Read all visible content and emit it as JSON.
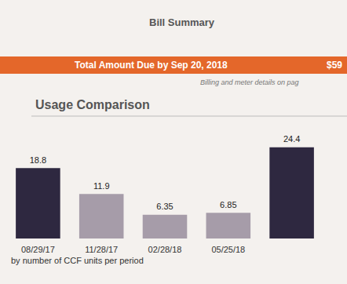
{
  "chart_data": {
    "type": "bar",
    "title": "Usage Comparison",
    "subtitle": "by number of CCF units per period",
    "annotations": [
      "Bill Summary",
      "Total Amount Due by Sep 20, 2018",
      "$59",
      "Billing and meter details on pag"
    ],
    "categories": [
      "08/29/17",
      "11/28/17",
      "02/28/18",
      "05/25/18",
      null
    ],
    "values": [
      18.8,
      11.9,
      6.35,
      6.85,
      24.4
    ],
    "colors": [
      "#2e2840",
      "#a69ca9",
      "#a69ca9",
      "#a69ca9",
      "#2e2840"
    ],
    "ylim": [
      0,
      26
    ],
    "data_labels": true,
    "tick_labels": "x"
  }
}
